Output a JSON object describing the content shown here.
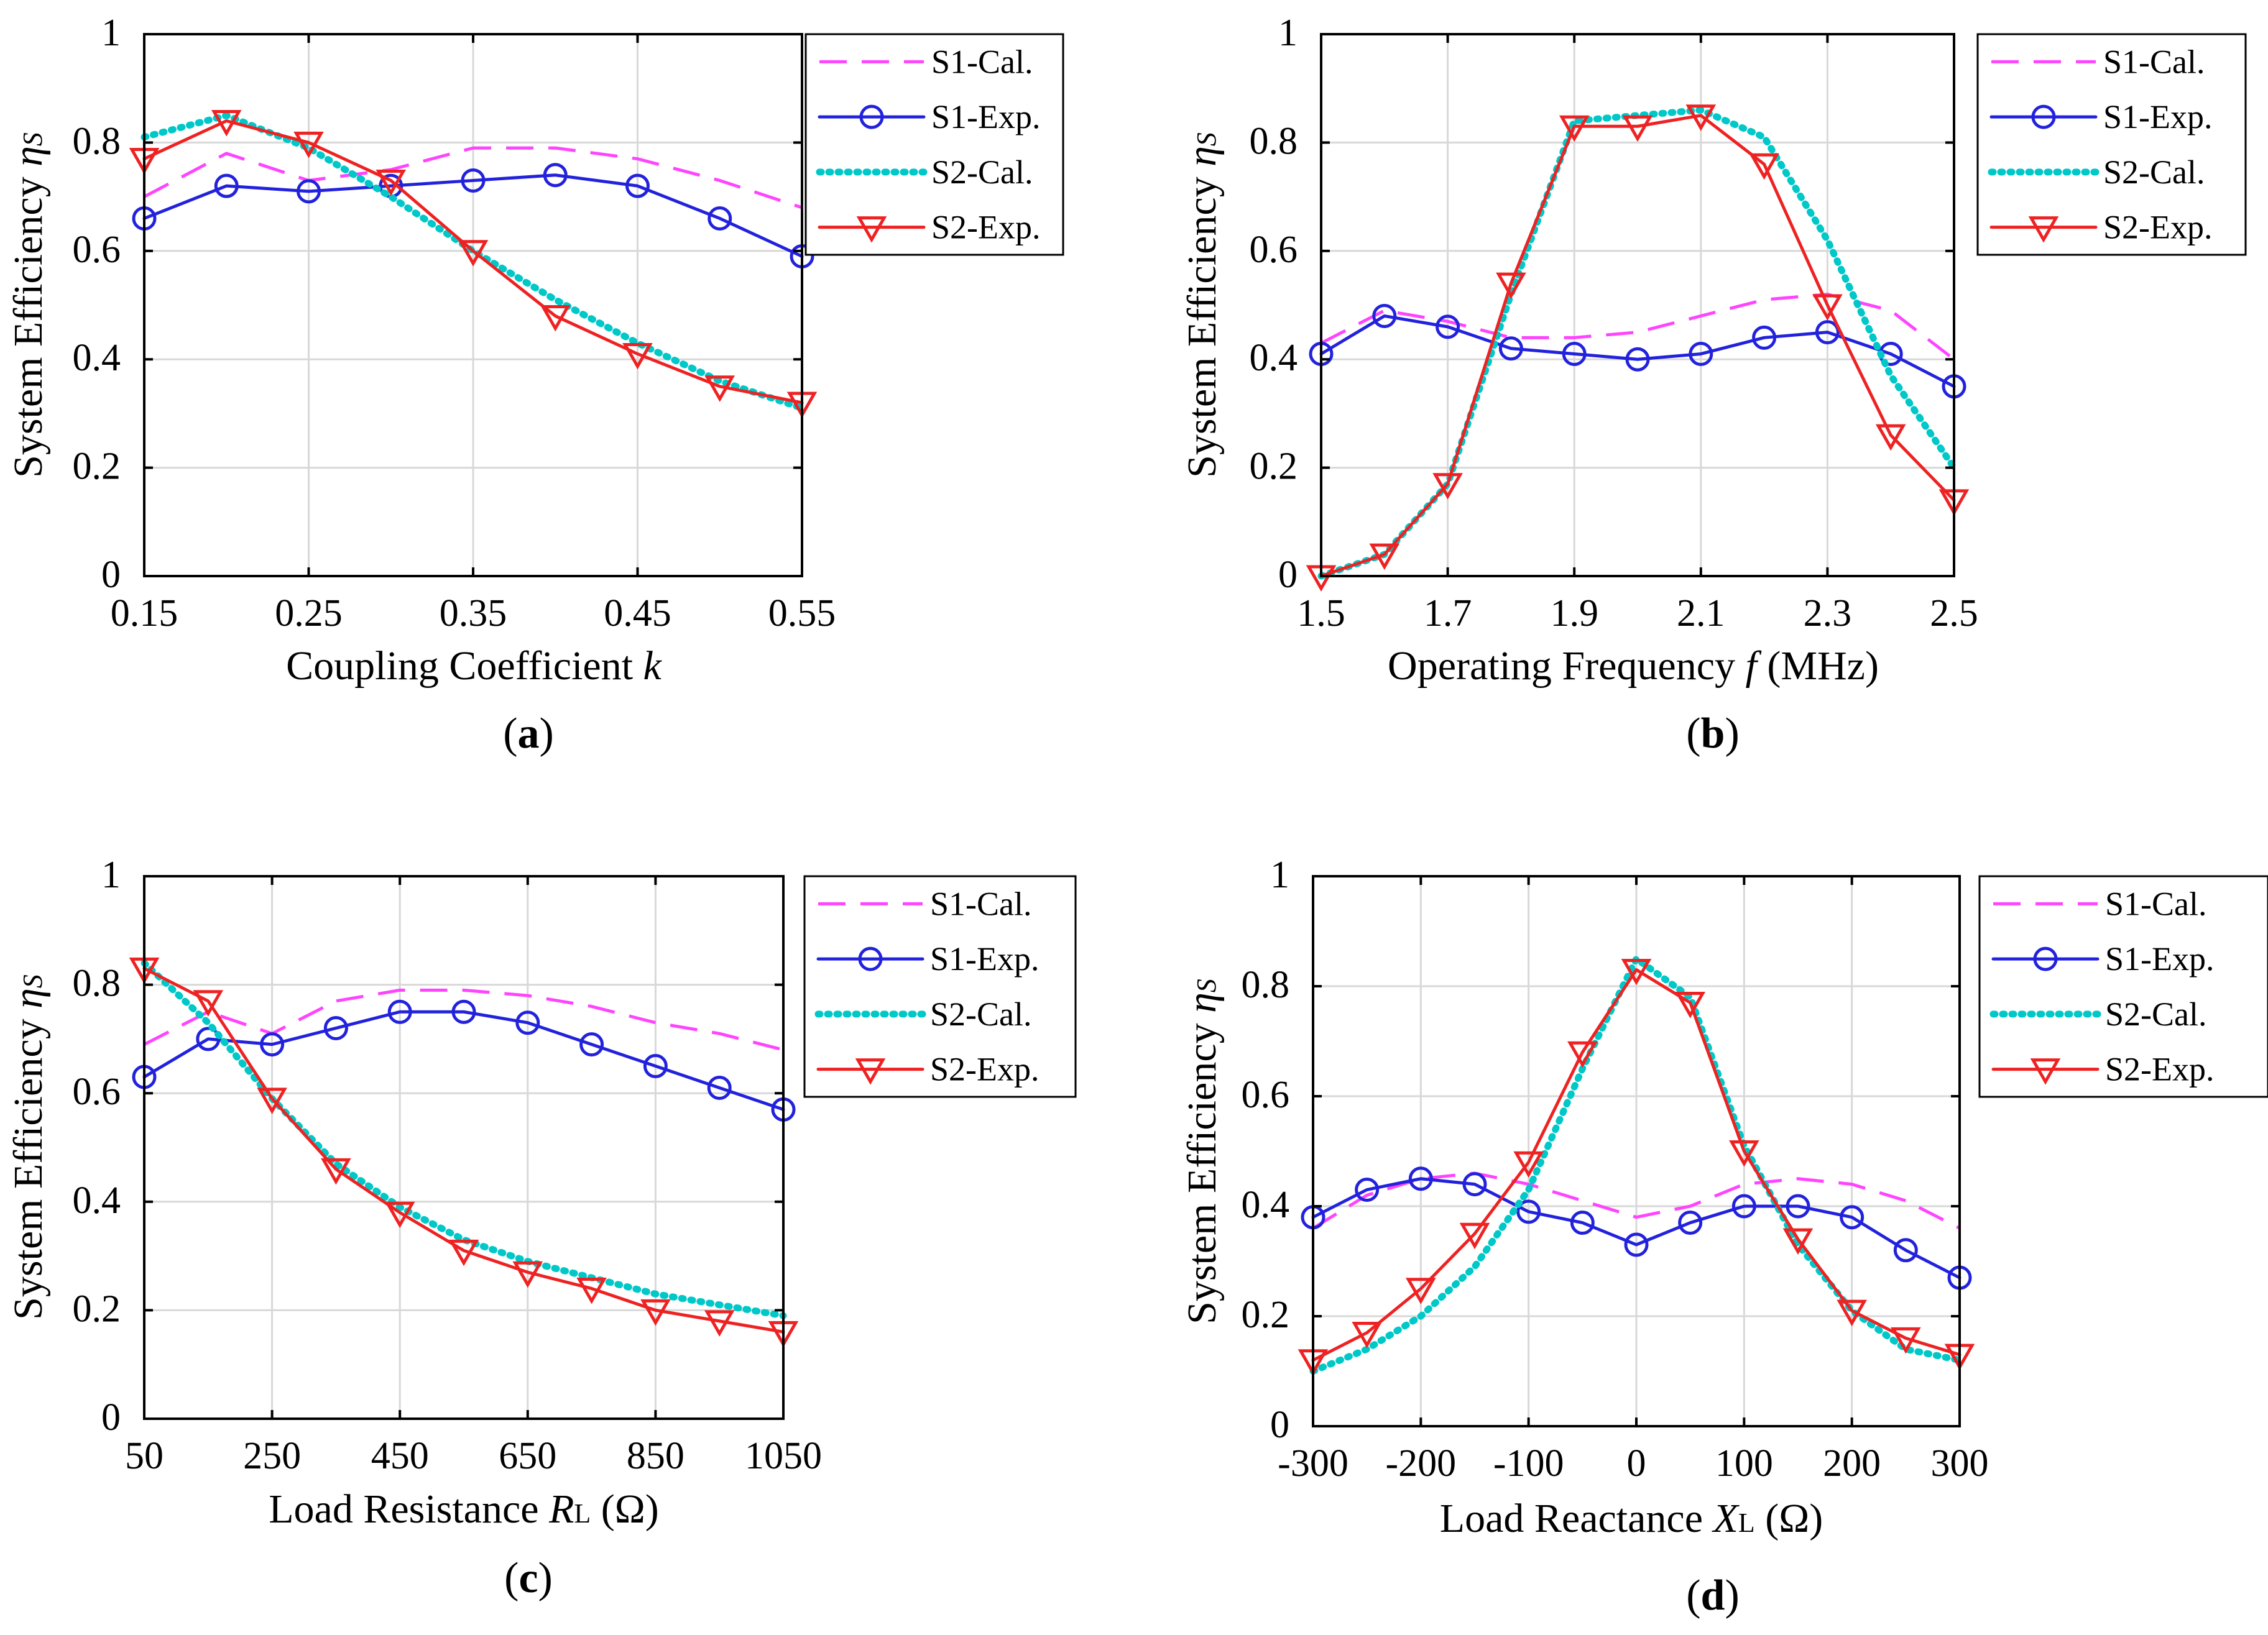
{
  "colors": {
    "s1_cal": "#ff44ff",
    "s1_exp": "#2222dd",
    "s2_cal": "#00c8c8",
    "s2_exp": "#ee2222",
    "grid": "#d8d8d8",
    "axis": "#000000"
  },
  "chart_data": [
    {
      "id": "a",
      "type": "line",
      "caption_letter": "a",
      "xlabel": {
        "pre": "Coupling Coefficient ",
        "var": "k",
        "sub": "",
        "post": ""
      },
      "ylabel": {
        "pre": "System Efficiency ",
        "var": "η",
        "sub": "S"
      },
      "xlim": [
        0.15,
        0.55
      ],
      "ylim": [
        0,
        1
      ],
      "xticks": [
        0.15,
        0.25,
        0.35,
        0.45,
        0.55
      ],
      "xtick_labels": [
        "0.15",
        "0.25",
        "0.35",
        "0.45",
        "0.55"
      ],
      "yticks": [
        0,
        0.2,
        0.4,
        0.6,
        0.8,
        1
      ],
      "ytick_labels": [
        "0",
        "0.2",
        "0.4",
        "0.6",
        "0.8",
        "1"
      ],
      "legend_position": "top-right-outside",
      "series": [
        {
          "name": "S1-Cal.",
          "style": "dashed",
          "color_key": "s1_cal",
          "x": [
            0.15,
            0.2,
            0.25,
            0.3,
            0.35,
            0.4,
            0.45,
            0.5,
            0.55
          ],
          "y": [
            0.7,
            0.78,
            0.73,
            0.75,
            0.79,
            0.79,
            0.77,
            0.73,
            0.68
          ]
        },
        {
          "name": "S1-Exp.",
          "style": "solid",
          "marker": "circle",
          "color_key": "s1_exp",
          "x": [
            0.15,
            0.2,
            0.25,
            0.3,
            0.35,
            0.4,
            0.45,
            0.5,
            0.55
          ],
          "y": [
            0.66,
            0.72,
            0.71,
            0.72,
            0.73,
            0.74,
            0.72,
            0.66,
            0.59
          ]
        },
        {
          "name": "S2-Cal.",
          "style": "dotted",
          "color_key": "s2_cal",
          "x": [
            0.15,
            0.2,
            0.25,
            0.3,
            0.35,
            0.4,
            0.45,
            0.5,
            0.55
          ],
          "y": [
            0.81,
            0.85,
            0.79,
            0.7,
            0.6,
            0.51,
            0.43,
            0.36,
            0.31
          ]
        },
        {
          "name": "S2-Exp.",
          "style": "solid",
          "marker": "triangle-down",
          "color_key": "s2_exp",
          "x": [
            0.15,
            0.2,
            0.25,
            0.3,
            0.35,
            0.4,
            0.45,
            0.5,
            0.55
          ],
          "y": [
            0.77,
            0.84,
            0.8,
            0.73,
            0.6,
            0.48,
            0.41,
            0.35,
            0.32
          ]
        }
      ]
    },
    {
      "id": "b",
      "type": "line",
      "caption_letter": "b",
      "xlabel": {
        "pre": "Operating Frequency ",
        "var": "f",
        "sub": "",
        "post": " (MHz)"
      },
      "ylabel": {
        "pre": "System Efficiency ",
        "var": "η",
        "sub": "S"
      },
      "xlim": [
        1.5,
        2.5
      ],
      "ylim": [
        0,
        1
      ],
      "xticks": [
        1.5,
        1.7,
        1.9,
        2.1,
        2.3,
        2.5
      ],
      "xtick_labels": [
        "1.5",
        "1.7",
        "1.9",
        "2.1",
        "2.3",
        "2.5"
      ],
      "yticks": [
        0,
        0.2,
        0.4,
        0.6,
        0.8,
        1
      ],
      "ytick_labels": [
        "0",
        "0.2",
        "0.4",
        "0.6",
        "0.8",
        "1"
      ],
      "legend_position": "top-right-outside",
      "series": [
        {
          "name": "S1-Cal.",
          "style": "dashed",
          "color_key": "s1_cal",
          "x": [
            1.5,
            1.6,
            1.7,
            1.8,
            1.9,
            2.0,
            2.1,
            2.2,
            2.3,
            2.4,
            2.5
          ],
          "y": [
            0.43,
            0.49,
            0.47,
            0.44,
            0.44,
            0.45,
            0.48,
            0.51,
            0.52,
            0.49,
            0.4
          ]
        },
        {
          "name": "S1-Exp.",
          "style": "solid",
          "marker": "circle",
          "color_key": "s1_exp",
          "x": [
            1.5,
            1.6,
            1.7,
            1.8,
            1.9,
            2.0,
            2.1,
            2.2,
            2.3,
            2.4,
            2.5
          ],
          "y": [
            0.41,
            0.48,
            0.46,
            0.42,
            0.41,
            0.4,
            0.41,
            0.44,
            0.45,
            0.41,
            0.35
          ]
        },
        {
          "name": "S2-Cal.",
          "style": "dotted",
          "color_key": "s2_cal",
          "x": [
            1.5,
            1.6,
            1.7,
            1.8,
            1.9,
            2.0,
            2.1,
            2.2,
            2.3,
            2.4,
            2.5
          ],
          "y": [
            0.0,
            0.04,
            0.17,
            0.52,
            0.84,
            0.85,
            0.86,
            0.81,
            0.62,
            0.37,
            0.2
          ]
        },
        {
          "name": "S2-Exp.",
          "style": "solid",
          "marker": "triangle-down",
          "color_key": "s2_exp",
          "x": [
            1.5,
            1.6,
            1.7,
            1.8,
            1.9,
            2.0,
            2.1,
            2.2,
            2.3,
            2.4,
            2.5
          ],
          "y": [
            0.0,
            0.04,
            0.17,
            0.54,
            0.83,
            0.83,
            0.85,
            0.76,
            0.5,
            0.26,
            0.14
          ]
        }
      ]
    },
    {
      "id": "c",
      "type": "line",
      "caption_letter": "c",
      "xlabel": {
        "pre": "Load Resistance ",
        "var": "R",
        "sub": "L",
        "post": " (Ω)"
      },
      "ylabel": {
        "pre": "System Efficiency ",
        "var": "η",
        "sub": "S"
      },
      "xlim": [
        50,
        1050
      ],
      "ylim": [
        0,
        1
      ],
      "xticks": [
        50,
        250,
        450,
        650,
        850,
        1050
      ],
      "xtick_labels": [
        "50",
        "250",
        "450",
        "650",
        "850",
        "1050"
      ],
      "yticks": [
        0,
        0.2,
        0.4,
        0.6,
        0.8,
        1
      ],
      "ytick_labels": [
        "0",
        "0.2",
        "0.4",
        "0.6",
        "0.8",
        "1"
      ],
      "legend_position": "top-right-outside",
      "series": [
        {
          "name": "S1-Cal.",
          "style": "dashed",
          "color_key": "s1_cal",
          "x": [
            50,
            150,
            250,
            350,
            450,
            550,
            650,
            750,
            850,
            950,
            1050
          ],
          "y": [
            0.69,
            0.75,
            0.71,
            0.77,
            0.79,
            0.79,
            0.78,
            0.76,
            0.73,
            0.71,
            0.68
          ]
        },
        {
          "name": "S1-Exp.",
          "style": "solid",
          "marker": "circle",
          "color_key": "s1_exp",
          "x": [
            50,
            150,
            250,
            350,
            450,
            550,
            650,
            750,
            850,
            950,
            1050
          ],
          "y": [
            0.63,
            0.7,
            0.69,
            0.72,
            0.75,
            0.75,
            0.73,
            0.69,
            0.65,
            0.61,
            0.57
          ]
        },
        {
          "name": "S2-Cal.",
          "style": "dotted",
          "color_key": "s2_cal",
          "x": [
            50,
            150,
            250,
            350,
            450,
            550,
            650,
            750,
            850,
            950,
            1050
          ],
          "y": [
            0.84,
            0.73,
            0.59,
            0.47,
            0.39,
            0.33,
            0.29,
            0.26,
            0.23,
            0.21,
            0.19
          ]
        },
        {
          "name": "S2-Exp.",
          "style": "solid",
          "marker": "triangle-down",
          "color_key": "s2_exp",
          "x": [
            50,
            150,
            250,
            350,
            450,
            550,
            650,
            750,
            850,
            950,
            1050
          ],
          "y": [
            0.83,
            0.77,
            0.59,
            0.46,
            0.38,
            0.31,
            0.27,
            0.24,
            0.2,
            0.18,
            0.16
          ]
        }
      ]
    },
    {
      "id": "d",
      "type": "line",
      "caption_letter": "d",
      "xlabel": {
        "pre": "Load Reactance ",
        "var": "X",
        "sub": "L",
        "post": " (Ω)"
      },
      "ylabel": {
        "pre": "System Efficiency ",
        "var": "η",
        "sub": "S"
      },
      "xlim": [
        -300,
        300
      ],
      "ylim": [
        0,
        1
      ],
      "xticks": [
        -300,
        -200,
        -100,
        0,
        100,
        200,
        300
      ],
      "xtick_labels": [
        "-300",
        "-200",
        "-100",
        "0",
        "100",
        "200",
        "300"
      ],
      "yticks": [
        0,
        0.2,
        0.4,
        0.6,
        0.8,
        1
      ],
      "ytick_labels": [
        "0",
        "0.2",
        "0.4",
        "0.6",
        "0.8",
        "1"
      ],
      "legend_position": "top-right-outside",
      "series": [
        {
          "name": "S1-Cal.",
          "style": "dashed",
          "color_key": "s1_cal",
          "x": [
            -300,
            -250,
            -200,
            -150,
            -100,
            -50,
            0,
            50,
            100,
            150,
            200,
            250,
            300
          ],
          "y": [
            0.36,
            0.42,
            0.45,
            0.46,
            0.44,
            0.41,
            0.38,
            0.4,
            0.44,
            0.45,
            0.44,
            0.41,
            0.36
          ]
        },
        {
          "name": "S1-Exp.",
          "style": "solid",
          "marker": "circle",
          "color_key": "s1_exp",
          "x": [
            -300,
            -250,
            -200,
            -150,
            -100,
            -50,
            0,
            50,
            100,
            150,
            200,
            250,
            300
          ],
          "y": [
            0.38,
            0.43,
            0.45,
            0.44,
            0.39,
            0.37,
            0.33,
            0.37,
            0.4,
            0.4,
            0.38,
            0.32,
            0.27
          ]
        },
        {
          "name": "S2-Cal.",
          "style": "dotted",
          "color_key": "s2_cal",
          "x": [
            -300,
            -250,
            -200,
            -150,
            -100,
            -50,
            0,
            50,
            100,
            150,
            200,
            250,
            300
          ],
          "y": [
            0.1,
            0.14,
            0.2,
            0.29,
            0.43,
            0.65,
            0.85,
            0.78,
            0.51,
            0.33,
            0.21,
            0.14,
            0.12
          ]
        },
        {
          "name": "S2-Exp.",
          "style": "solid",
          "marker": "triangle-down",
          "color_key": "s2_exp",
          "x": [
            -300,
            -250,
            -200,
            -150,
            -100,
            -50,
            0,
            50,
            100,
            150,
            200,
            250,
            300
          ],
          "y": [
            0.12,
            0.17,
            0.25,
            0.35,
            0.48,
            0.68,
            0.83,
            0.77,
            0.5,
            0.34,
            0.21,
            0.16,
            0.13
          ]
        }
      ]
    }
  ]
}
